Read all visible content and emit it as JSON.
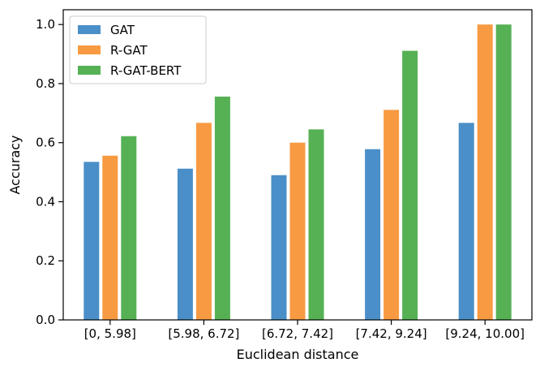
{
  "chart_data": {
    "type": "bar",
    "categories": [
      "[0, 5.98]",
      "[5.98, 6.72]",
      "[6.72, 7.42]",
      "[7.42, 9.24]",
      "[9.24, 10.00]"
    ],
    "series": [
      {
        "name": "GAT",
        "color": "#4a8fc8",
        "values": [
          0.535,
          0.512,
          0.49,
          0.578,
          0.667
        ]
      },
      {
        "name": "R-GAT",
        "color": "#f79a42",
        "values": [
          0.556,
          0.667,
          0.6,
          0.711,
          1.0
        ]
      },
      {
        "name": "R-GAT-BERT",
        "color": "#56b155",
        "values": [
          0.622,
          0.756,
          0.645,
          0.911,
          1.0
        ]
      }
    ],
    "xlabel": "Euclidean distance",
    "ylabel": "Accuracy",
    "ylim": [
      0,
      1.05
    ],
    "yticks": [
      0.0,
      0.2,
      0.4,
      0.6,
      0.8,
      1.0
    ],
    "ytick_labels": [
      "0.0",
      "0.2",
      "0.4",
      "0.6",
      "0.8",
      "1.0"
    ],
    "grid": false,
    "legend_position": "top-left"
  }
}
